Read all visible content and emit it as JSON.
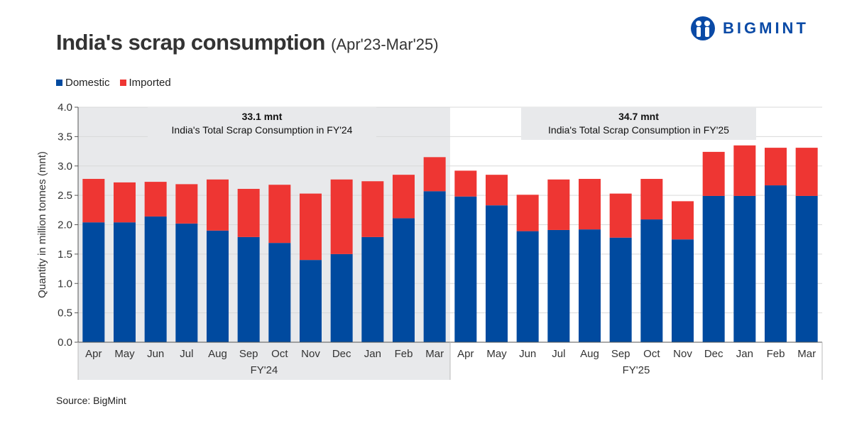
{
  "title": "India's scrap consumption",
  "subtitle": "(Apr'23-Mar'25)",
  "logo": {
    "text": "BIGMINT",
    "color": "#0a4aa6"
  },
  "source": "Source: BigMint",
  "colors": {
    "domestic": "#004a9f",
    "imported": "#ee3633",
    "fy24_band": "#e8e9eb",
    "fy25_box": "#e8e9eb"
  },
  "chart_data": {
    "type": "bar",
    "stacked": true,
    "ylabel": "Quantity in million tonnes (mnt)",
    "ylim": [
      0,
      4.0
    ],
    "yticks": [
      "0.0",
      "0.5",
      "1.0",
      "1.5",
      "2.0",
      "2.5",
      "3.0",
      "3.5",
      "4.0"
    ],
    "grid": true,
    "legend_placement": "top-left",
    "categories": [
      "Apr",
      "May",
      "Jun",
      "Jul",
      "Aug",
      "Sep",
      "Oct",
      "Nov",
      "Dec",
      "Jan",
      "Feb",
      "Mar",
      "Apr",
      "May",
      "Jun",
      "Jul",
      "Aug",
      "Sep",
      "Oct",
      "Nov",
      "Dec",
      "Jan",
      "Feb",
      "Mar"
    ],
    "groups": [
      {
        "label": "FY'24",
        "annotation_value": "33.1 mnt",
        "annotation_text": "India's Total Scrap Consumption in FY'24"
      },
      {
        "label": "FY'25",
        "annotation_value": "34.7 mnt",
        "annotation_text": "India's Total Scrap Consumption in FY'25"
      }
    ],
    "series": [
      {
        "name": "Domestic",
        "values": [
          2.04,
          2.04,
          2.14,
          2.02,
          1.9,
          1.79,
          1.69,
          1.4,
          1.5,
          1.79,
          2.11,
          2.57,
          2.48,
          2.33,
          1.89,
          1.91,
          1.92,
          1.78,
          2.09,
          1.75,
          2.49,
          2.49,
          2.67,
          2.49
        ]
      },
      {
        "name": "Imported",
        "values": [
          0.74,
          0.68,
          0.59,
          0.67,
          0.87,
          0.82,
          0.99,
          1.13,
          1.27,
          0.95,
          0.74,
          0.58,
          0.44,
          0.52,
          0.62,
          0.86,
          0.86,
          0.75,
          0.69,
          0.65,
          0.75,
          0.86,
          0.64,
          0.82
        ]
      }
    ]
  }
}
